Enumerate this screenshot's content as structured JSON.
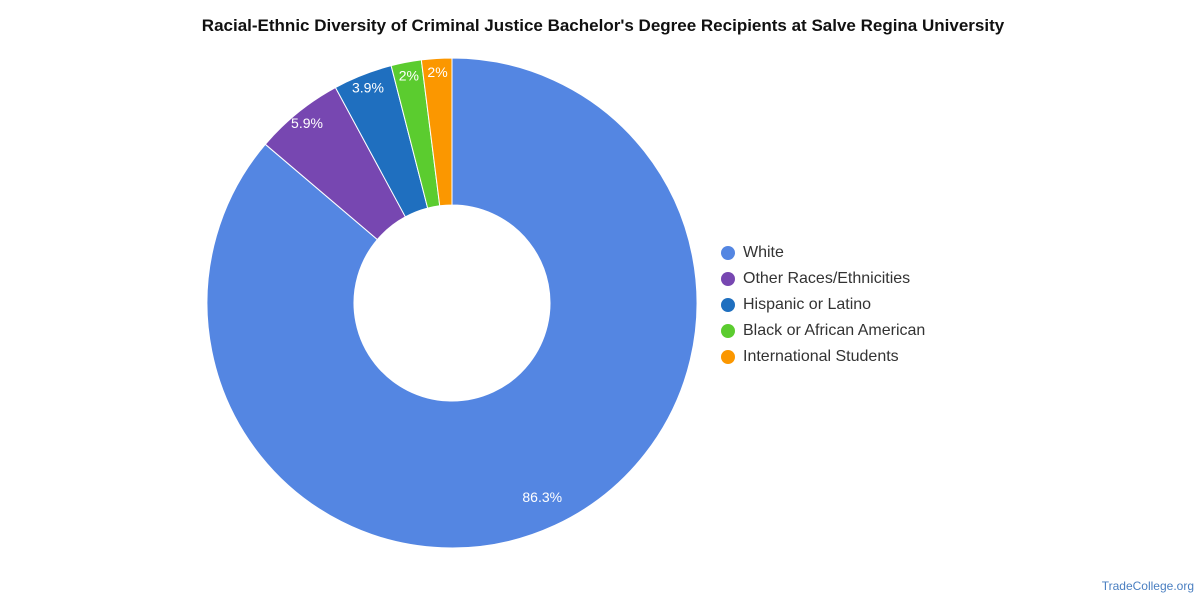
{
  "colors": {
    "white": "#5486e2",
    "other": "#7747b1",
    "hispanic": "#1f6fbf",
    "black": "#5bcc2f",
    "international": "#fb9700"
  },
  "chart_data": {
    "type": "pie",
    "donut": true,
    "title": "Racial-Ethnic Diversity of Criminal Justice Bachelor's Degree Recipients at Salve Regina University",
    "legend_position": "right",
    "slices": [
      {
        "name": "White",
        "value": 86.3,
        "label": "86.3%",
        "color": "#5486e2"
      },
      {
        "name": "Other Races/Ethnicities",
        "value": 5.9,
        "label": "5.9%",
        "color": "#7747b1"
      },
      {
        "name": "Hispanic or Latino",
        "value": 3.9,
        "label": "3.9%",
        "color": "#1f6fbf"
      },
      {
        "name": "Black or African American",
        "value": 2,
        "label": "2%",
        "color": "#5bcc2f"
      },
      {
        "name": "International Students",
        "value": 2,
        "label": "2%",
        "color": "#fb9700"
      }
    ]
  },
  "watermark": "TradeCollege.org"
}
